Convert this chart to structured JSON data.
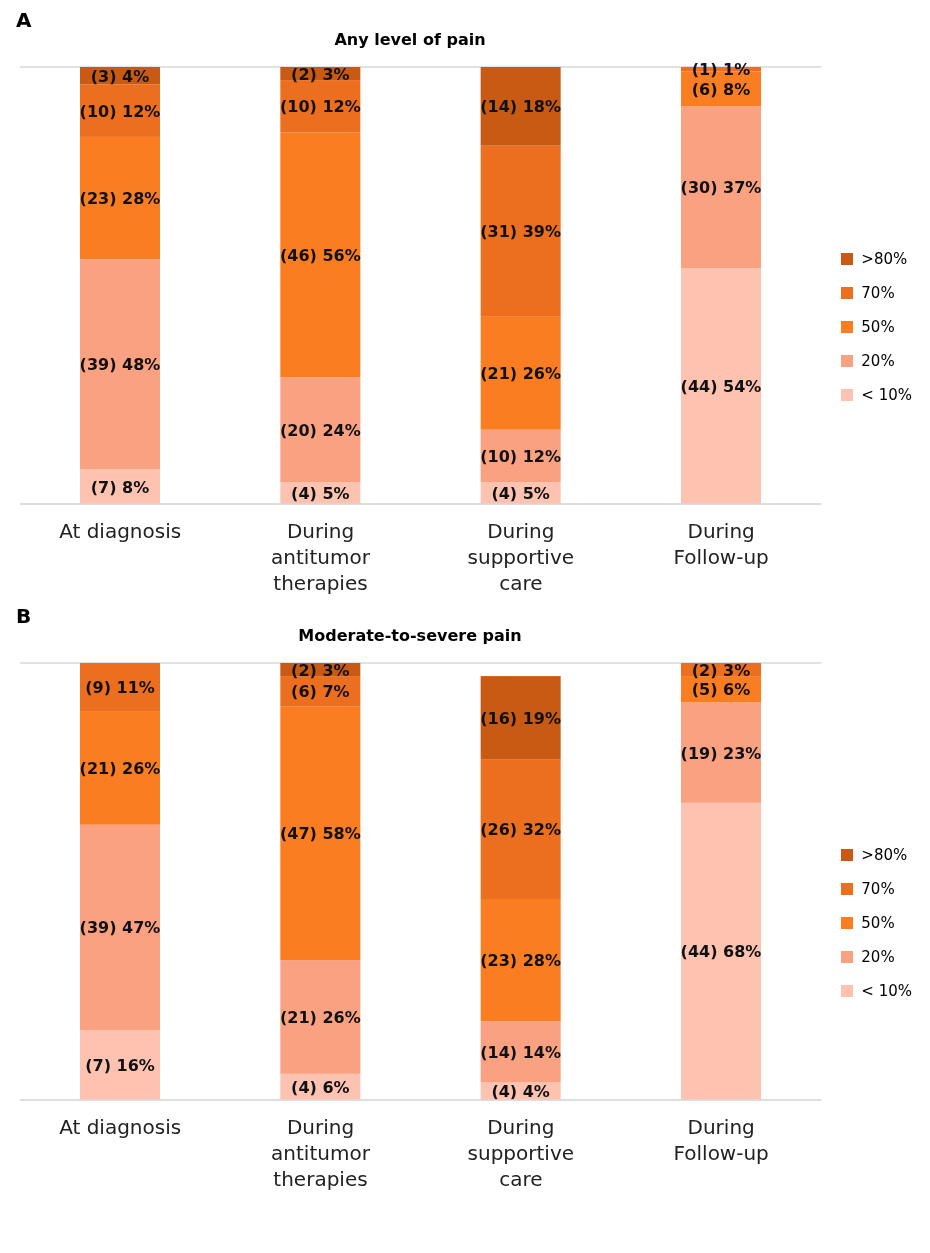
{
  "chart_data": [
    {
      "type": "bar",
      "stacked": true,
      "title": "Any level of pain",
      "annotations": [
        "A"
      ],
      "categories": [
        "At diagnosis",
        "During antitumor therapies",
        "During supportive care",
        "During Follow-up"
      ],
      "ylim": [
        0,
        100
      ],
      "tick_labels": "x",
      "grid": "y",
      "legend": "right",
      "series": [
        {
          "name": "< 10%",
          "color": "#fdc3b0",
          "values": [
            8,
            5,
            5,
            54
          ],
          "value_labels": [
            "(7) 8%",
            "(4) 5%",
            "(4) 5%",
            "(44) 54%"
          ]
        },
        {
          "name": "20%",
          "color": "#f9a180",
          "values": [
            48,
            24,
            12,
            37
          ],
          "value_labels": [
            "(39) 48%",
            "(20) 24%",
            "(10) 12%",
            "(30) 37%"
          ]
        },
        {
          "name": "50%",
          "color": "#fb7d22",
          "values": [
            28,
            56,
            26,
            8
          ],
          "value_labels": [
            "(23) 28%",
            "(46) 56%",
            "(21) 26%",
            "(6) 8%"
          ]
        },
        {
          "name": "70%",
          "color": "#ec6e1f",
          "values": [
            12,
            12,
            39,
            1
          ],
          "value_labels": [
            "(10) 12%",
            "(10) 12%",
            "(31) 39%",
            "(1) 1%"
          ]
        },
        {
          "name": " >80%",
          "color": "#c95a14",
          "values": [
            4,
            3,
            18,
            null
          ],
          "value_labels": [
            "(3) 4%",
            "(2) 3%",
            "(14) 18%",
            null
          ]
        }
      ]
    },
    {
      "type": "bar",
      "stacked": true,
      "title": "Moderate-to-severe pain",
      "annotations": [
        "B"
      ],
      "categories": [
        "At diagnosis",
        "During antitumor therapies",
        "During supportive care",
        "During Follow-up"
      ],
      "ylim": [
        0,
        100
      ],
      "tick_labels": "x",
      "grid": "y",
      "legend": "right",
      "series": [
        {
          "name": "< 10%",
          "color": "#fdc3b0",
          "values": [
            16,
            6,
            4,
            68
          ],
          "value_labels": [
            "(7) 16%",
            "(4) 6%",
            "(4) 4%",
            "(44) 68%"
          ]
        },
        {
          "name": "20%",
          "color": "#f9a180",
          "values": [
            47,
            26,
            14,
            23
          ],
          "value_labels": [
            "(39) 47%",
            "(21) 26%",
            "(14) 14%",
            "(19) 23%"
          ]
        },
        {
          "name": "50%",
          "color": "#fb7d22",
          "values": [
            26,
            58,
            28,
            6
          ],
          "value_labels": [
            "(21) 26%",
            "(47) 58%",
            "(23) 28%",
            "(5) 6%"
          ]
        },
        {
          "name": "70%",
          "color": "#ec6e1f",
          "values": [
            11,
            7,
            32,
            3
          ],
          "value_labels": [
            "(9) 11%",
            "(6) 7%",
            "(26) 32%",
            "(2) 3%"
          ]
        },
        {
          "name": " >80%",
          "color": "#c95a14",
          "values": [
            null,
            3,
            19,
            null
          ],
          "value_labels": [
            null,
            "(2) 3%",
            "(16) 19%",
            null
          ]
        }
      ]
    }
  ]
}
